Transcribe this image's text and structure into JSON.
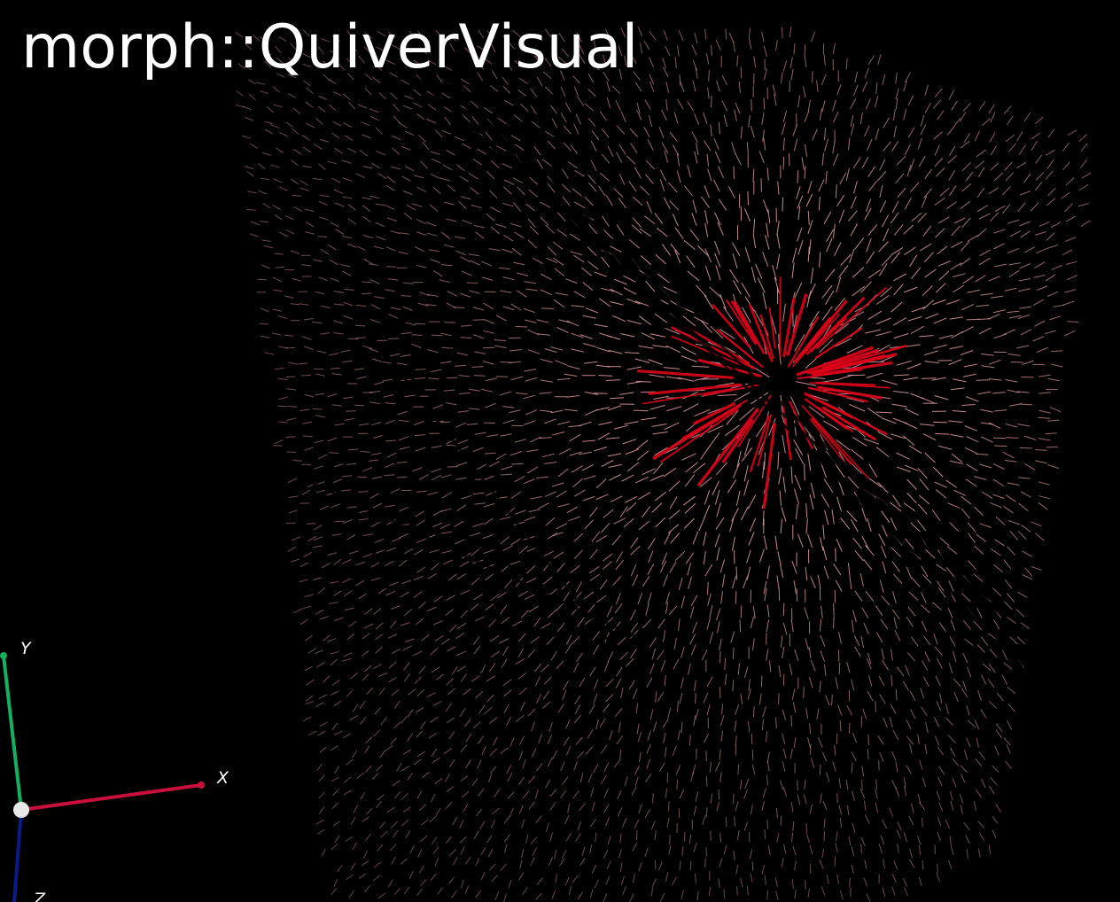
{
  "window": {
    "title": "morph::QuiverVisual"
  },
  "scene": {
    "background_color": "#000000",
    "visual_type": "quiver-field",
    "arrow_color_strong": "#e0001a",
    "arrow_color_weak": "#e8a0a6"
  },
  "axes_gizmo": {
    "x": {
      "label": "X",
      "color": "#c8103c"
    },
    "y": {
      "label": "Y",
      "color": "#13b060"
    },
    "z": {
      "label": "Z",
      "color": "#0a1a8a"
    },
    "origin_color": "#e8e8e8"
  },
  "icons": {
    "origin": "axis-origin-sphere-icon"
  }
}
